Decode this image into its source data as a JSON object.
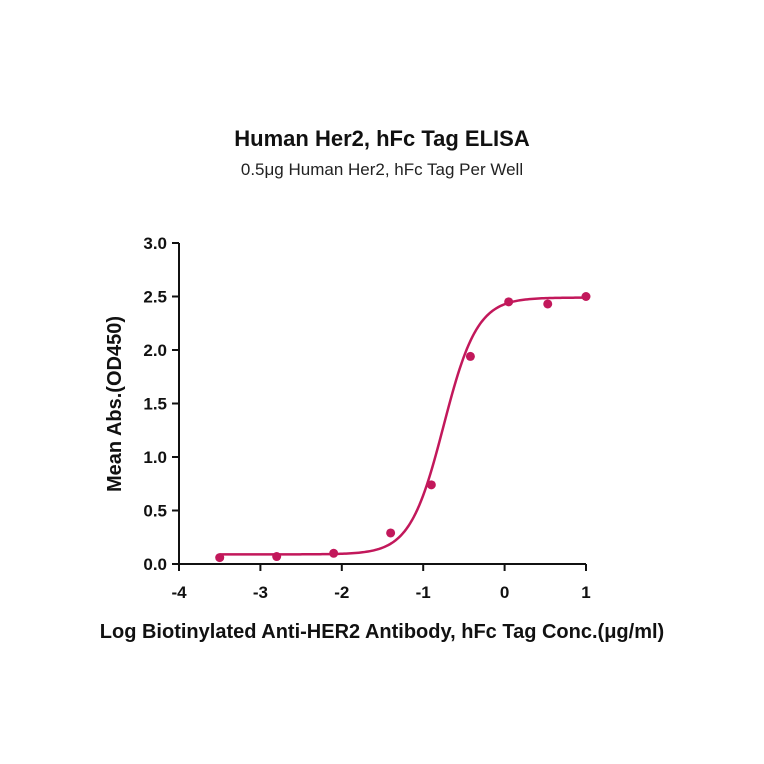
{
  "chart_data": {
    "type": "scatter",
    "title": "Human Her2, hFc Tag ELISA",
    "subtitle": "0.5μg Human Her2, hFc Tag Per Well",
    "xlabel": "Log Biotinylated Anti-HER2 Antibody, hFc Tag Conc.(μg/ml)",
    "ylabel": "Mean Abs.(OD450)",
    "xlim": [
      -4,
      1
    ],
    "ylim": [
      0,
      3
    ],
    "xticks": [
      -4,
      -3,
      -2,
      -1,
      0,
      1
    ],
    "yticks": [
      0.0,
      0.5,
      1.0,
      1.5,
      2.0,
      2.5,
      3.0
    ],
    "xtick_labels": [
      "-4",
      "-3",
      "-2",
      "-1",
      "0",
      "1"
    ],
    "ytick_labels": [
      "0.0",
      "0.5",
      "1.0",
      "1.5",
      "2.0",
      "2.5",
      "3.0"
    ],
    "series": [
      {
        "points": [
          {
            "x": -3.5,
            "y": 0.06
          },
          {
            "x": -2.8,
            "y": 0.07
          },
          {
            "x": -2.1,
            "y": 0.1
          },
          {
            "x": -1.4,
            "y": 0.29
          },
          {
            "x": -0.9,
            "y": 0.74
          },
          {
            "x": -0.42,
            "y": 1.94
          },
          {
            "x": 0.05,
            "y": 2.45
          },
          {
            "x": 0.53,
            "y": 2.43
          },
          {
            "x": 1.0,
            "y": 2.5
          }
        ],
        "fit": {
          "model": "4PL",
          "bottom": 0.09,
          "top": 2.49,
          "logEC50": -0.75,
          "hillslope": 2.1
        },
        "color": "#c2185b"
      }
    ],
    "grid": false,
    "legend": "none"
  }
}
